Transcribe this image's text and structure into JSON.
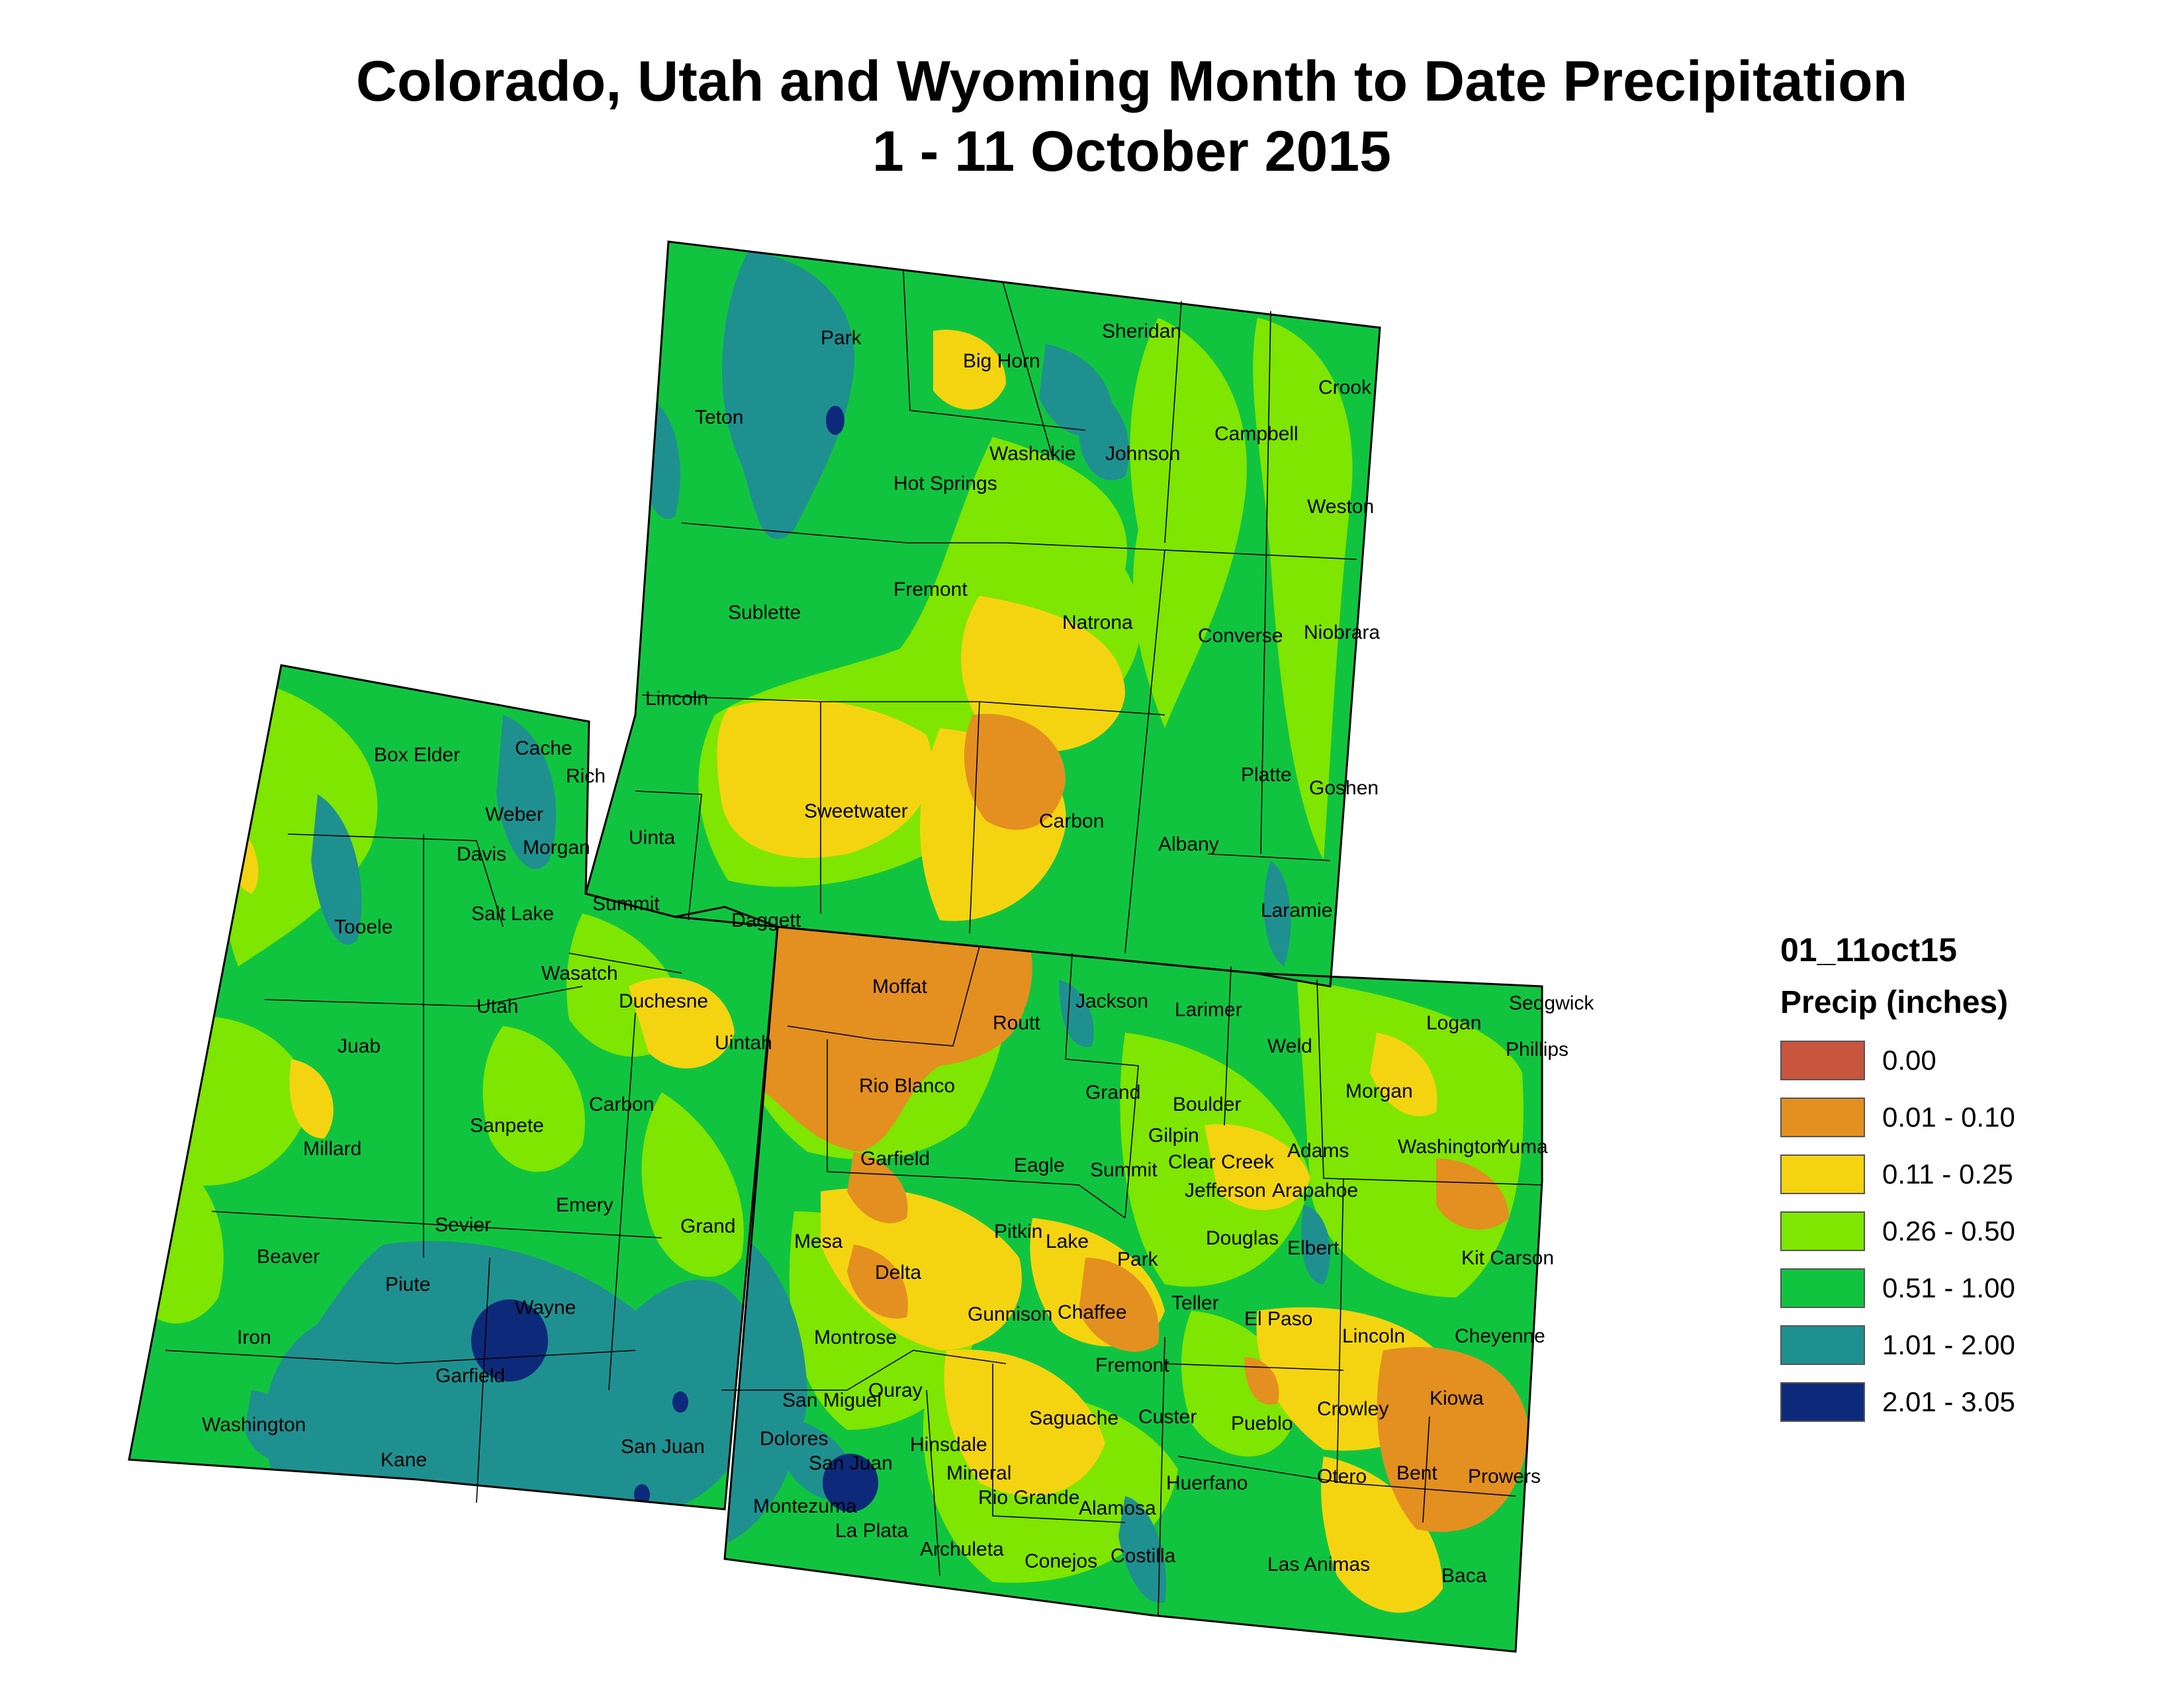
{
  "title": {
    "line1": "Colorado, Utah and Wyoming Month to Date Precipitation",
    "line2": "1 - 11 October 2015"
  },
  "legend": {
    "layer_name": "01_11oct15",
    "heading": "Precip (inches)",
    "items": [
      {
        "label": "0.00",
        "color": "#c8553d"
      },
      {
        "label": "0.01 - 0.10",
        "color": "#e39020"
      },
      {
        "label": "0.11 - 0.25",
        "color": "#f4d410"
      },
      {
        "label": "0.26 - 0.50",
        "color": "#7ee600"
      },
      {
        "label": "0.51 - 1.00",
        "color": "#11c440"
      },
      {
        "label": "1.01 - 2.00",
        "color": "#1f9090"
      },
      {
        "label": "2.01 - 3.05",
        "color": "#0d2a7a"
      }
    ]
  },
  "map": {
    "states": [
      "Colorado",
      "Utah",
      "Wyoming"
    ],
    "counties": {
      "wyoming": [
        "Park",
        "Sheridan",
        "Big Horn",
        "Crook",
        "Teton",
        "Washakie",
        "Johnson",
        "Campbell",
        "Hot Springs",
        "Weston",
        "Fremont",
        "Sublette",
        "Natrona",
        "Converse",
        "Niobrara",
        "Lincoln",
        "Sweetwater",
        "Carbon",
        "Platte",
        "Goshen",
        "Albany",
        "Uinta",
        "Laramie"
      ],
      "utah": [
        "Box Elder",
        "Cache",
        "Rich",
        "Weber",
        "Davis",
        "Morgan",
        "Tooele",
        "Salt Lake",
        "Summit",
        "Daggett",
        "Wasatch",
        "Utah",
        "Duchesne",
        "Uintah",
        "Juab",
        "Sanpete",
        "Carbon",
        "Millard",
        "Emery",
        "Sevier",
        "Grand",
        "Beaver",
        "Piute",
        "Wayne",
        "Iron",
        "Garfield",
        "Washington",
        "Kane",
        "San Juan"
      ],
      "colorado": [
        "Moffat",
        "Routt",
        "Jackson",
        "Larimer",
        "Logan",
        "Sedgwick",
        "Phillips",
        "Weld",
        "Rio Blanco",
        "Grand",
        "Morgan",
        "Boulder",
        "Garfield",
        "Gilpin",
        "Eagle",
        "Summit",
        "Clear Creek",
        "Adams",
        "Washington",
        "Yuma",
        "Jefferson",
        "Arapahoe",
        "Mesa",
        "Pitkin",
        "Lake",
        "Douglas",
        "Elbert",
        "Kit Carson",
        "Park",
        "Delta",
        "Teller",
        "Chaffee",
        "Gunnison",
        "El Paso",
        "Lincoln",
        "Cheyenne",
        "Montrose",
        "Fremont",
        "Ouray",
        "San Miguel",
        "Saguache",
        "Custer",
        "Pueblo",
        "Crowley",
        "Kiowa",
        "Dolores",
        "Hinsdale",
        "San Juan",
        "Mineral",
        "Otero",
        "Bent",
        "Prowers",
        "Montezuma",
        "Rio Grande",
        "Alamosa",
        "Huerfano",
        "La Plata",
        "Archuleta",
        "Conejos",
        "Costilla",
        "Las Animas",
        "Baca"
      ]
    }
  }
}
